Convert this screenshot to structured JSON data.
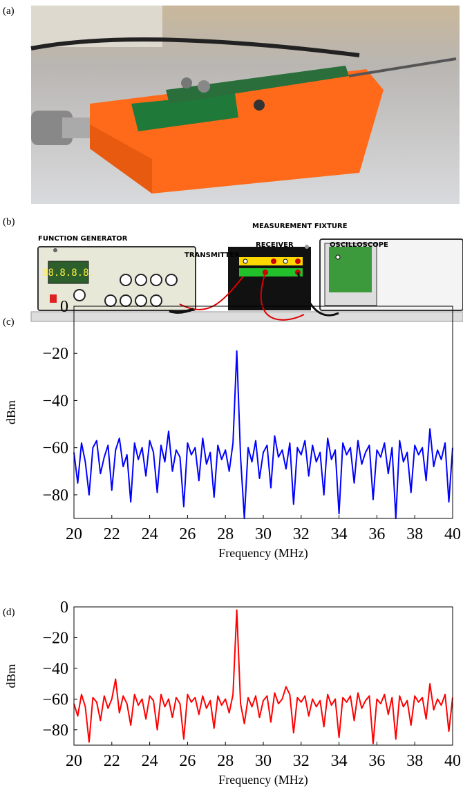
{
  "panels": [
    "(a)",
    "(b)",
    "(c)",
    "(d)"
  ],
  "diagram": {
    "function_generator": "FUNCTION GENERATOR",
    "display": "88.8.8.8.",
    "transmitter": "TRANSMITTER",
    "receiver": "RECEIVER",
    "measurement_fixture": "MEASUREMENT FIXTURE",
    "oscilloscope": "OSCILLOSCOPE"
  },
  "chart_data": [
    {
      "type": "line",
      "color": "#0000ff",
      "xlabel": "Frequency (MHz)",
      "ylabel": "dBm",
      "xlim": [
        20,
        40
      ],
      "xticks": [
        20,
        22,
        24,
        26,
        28,
        30,
        32,
        34,
        36,
        38,
        40
      ],
      "ylim": [
        -90,
        0
      ],
      "yticks": [
        {
          "value": -80,
          "label": "−80"
        },
        {
          "value": -60,
          "label": "−60"
        },
        {
          "value": -40,
          "label": "−40"
        },
        {
          "value": -20,
          "label": "−20"
        },
        0
      ],
      "x": [
        20,
        20.2,
        20.4,
        20.6,
        20.8,
        21,
        21.2,
        21.4,
        21.6,
        21.8,
        22,
        22.2,
        22.4,
        22.6,
        22.8,
        23,
        23.2,
        23.4,
        23.6,
        23.8,
        24,
        24.2,
        24.4,
        24.6,
        24.8,
        25,
        25.2,
        25.4,
        25.6,
        25.8,
        26,
        26.2,
        26.4,
        26.6,
        26.8,
        27,
        27.2,
        27.4,
        27.6,
        27.8,
        28,
        28.2,
        28.4,
        28.6,
        28.8,
        29,
        29.2,
        29.4,
        29.6,
        29.8,
        30,
        30.2,
        30.4,
        30.6,
        30.8,
        31,
        31.2,
        31.4,
        31.6,
        31.8,
        32,
        32.2,
        32.4,
        32.6,
        32.8,
        33,
        33.2,
        33.4,
        33.6,
        33.8,
        34,
        34.2,
        34.4,
        34.6,
        34.8,
        35,
        35.2,
        35.4,
        35.6,
        35.8,
        36,
        36.2,
        36.4,
        36.6,
        36.8,
        37,
        37.2,
        37.4,
        37.6,
        37.8,
        38,
        38.2,
        38.4,
        38.6,
        38.8,
        39,
        39.2,
        39.4,
        39.6,
        39.8,
        40
      ],
      "values": [
        -62,
        -75,
        -58,
        -66,
        -80,
        -60,
        -57,
        -71,
        -64,
        -59,
        -78,
        -61,
        -56,
        -68,
        -63,
        -83,
        -58,
        -65,
        -60,
        -72,
        -57,
        -62,
        -79,
        -59,
        -66,
        -53,
        -70,
        -61,
        -64,
        -85,
        -58,
        -63,
        -60,
        -74,
        -56,
        -67,
        -62,
        -81,
        -59,
        -65,
        -61,
        -70,
        -58,
        -19,
        -64,
        -90,
        -60,
        -66,
        -57,
        -73,
        -62,
        -59,
        -77,
        -55,
        -64,
        -61,
        -69,
        -58,
        -84,
        -60,
        -63,
        -57,
        -72,
        -59,
        -66,
        -62,
        -80,
        -56,
        -65,
        -61,
        -88,
        -58,
        -63,
        -60,
        -75,
        -57,
        -67,
        -62,
        -59,
        -82,
        -61,
        -64,
        -58,
        -71,
        -60,
        -90,
        -57,
        -66,
        -62,
        -79,
        -59,
        -63,
        -60,
        -74,
        -52,
        -68,
        -61,
        -65,
        -58,
        -83,
        -60
      ]
    },
    {
      "type": "line",
      "color": "#ff0000",
      "xlabel": "Frequency (MHz)",
      "ylabel": "dBm",
      "xlim": [
        20,
        40
      ],
      "xticks": [
        20,
        22,
        24,
        26,
        28,
        30,
        32,
        34,
        36,
        38,
        40
      ],
      "ylim": [
        -90,
        0
      ],
      "yticks": [
        {
          "value": -80,
          "label": "−80"
        },
        {
          "value": -60,
          "label": "−60"
        },
        {
          "value": -40,
          "label": "−40"
        },
        {
          "value": -20,
          "label": "−20"
        },
        0
      ],
      "x": [
        20,
        20.2,
        20.4,
        20.6,
        20.8,
        21,
        21.2,
        21.4,
        21.6,
        21.8,
        22,
        22.2,
        22.4,
        22.6,
        22.8,
        23,
        23.2,
        23.4,
        23.6,
        23.8,
        24,
        24.2,
        24.4,
        24.6,
        24.8,
        25,
        25.2,
        25.4,
        25.6,
        25.8,
        26,
        26.2,
        26.4,
        26.6,
        26.8,
        27,
        27.2,
        27.4,
        27.6,
        27.8,
        28,
        28.2,
        28.4,
        28.6,
        28.8,
        29,
        29.2,
        29.4,
        29.6,
        29.8,
        30,
        30.2,
        30.4,
        30.6,
        30.8,
        31,
        31.2,
        31.4,
        31.6,
        31.8,
        32,
        32.2,
        32.4,
        32.6,
        32.8,
        33,
        33.2,
        33.4,
        33.6,
        33.8,
        34,
        34.2,
        34.4,
        34.6,
        34.8,
        35,
        35.2,
        35.4,
        35.6,
        35.8,
        36,
        36.2,
        36.4,
        36.6,
        36.8,
        37,
        37.2,
        37.4,
        37.6,
        37.8,
        38,
        38.2,
        38.4,
        38.6,
        38.8,
        39,
        39.2,
        39.4,
        39.6,
        39.8,
        40
      ],
      "values": [
        -63,
        -71,
        -57,
        -65,
        -88,
        -59,
        -62,
        -74,
        -58,
        -66,
        -60,
        -47,
        -69,
        -58,
        -63,
        -77,
        -57,
        -64,
        -60,
        -73,
        -58,
        -61,
        -80,
        -57,
        -65,
        -60,
        -72,
        -59,
        -63,
        -86,
        -57,
        -62,
        -59,
        -70,
        -58,
        -66,
        -61,
        -79,
        -58,
        -64,
        -60,
        -69,
        -57,
        -2,
        -63,
        -76,
        -59,
        -65,
        -58,
        -72,
        -61,
        -58,
        -75,
        -56,
        -63,
        -60,
        -52,
        -57,
        -82,
        -59,
        -62,
        -58,
        -71,
        -60,
        -65,
        -61,
        -78,
        -57,
        -64,
        -60,
        -85,
        -59,
        -62,
        -58,
        -74,
        -56,
        -66,
        -61,
        -58,
        -89,
        -60,
        -63,
        -57,
        -70,
        -59,
        -86,
        -58,
        -65,
        -61,
        -77,
        -58,
        -62,
        -59,
        -73,
        -50,
        -67,
        -60,
        -64,
        -57,
        -81,
        -59
      ]
    }
  ]
}
